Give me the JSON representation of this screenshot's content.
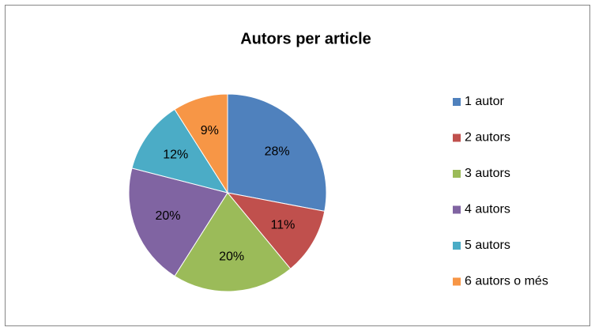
{
  "chart_data": {
    "type": "pie",
    "title": "Autors per article",
    "categories": [
      "1 autor",
      "2 autors",
      "3 autors",
      "4 autors",
      "5 autors",
      "6 autors o més"
    ],
    "values": [
      28,
      11,
      20,
      20,
      12,
      9
    ],
    "value_labels": [
      "28%",
      "11%",
      "20%",
      "20%",
      "12%",
      "9%"
    ],
    "colors": [
      "#4f81bd",
      "#c0504d",
      "#9bbb59",
      "#8064a2",
      "#4bacc6",
      "#f79646"
    ],
    "legend": "right"
  }
}
